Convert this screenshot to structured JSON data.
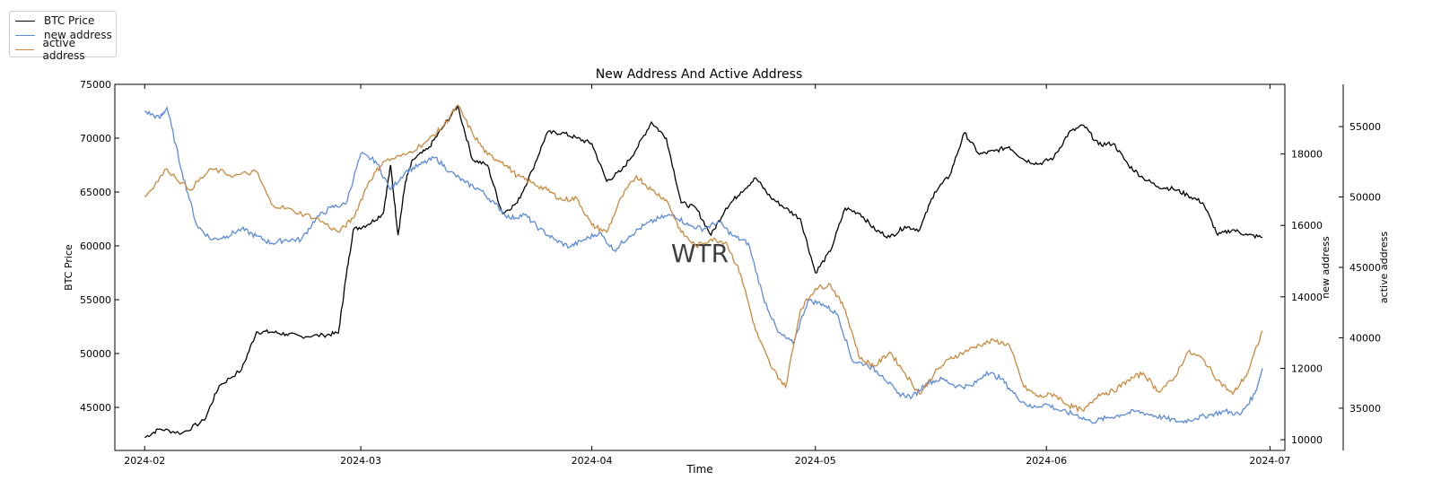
{
  "chart_data": {
    "type": "line",
    "title": "New Address And Active Address",
    "xlabel": "Time",
    "x_ticks": [
      "2024-02",
      "2024-03",
      "2024-04",
      "2024-05",
      "2024-06",
      "2024-07"
    ],
    "x_range": [
      "2024-01-28",
      "2024-07-03"
    ],
    "watermark": "WTR",
    "legend_position": "top-left",
    "axes": [
      {
        "id": "btc",
        "label": "BTC Price",
        "side": "left",
        "range": [
          41000,
          75000
        ],
        "ticks": [
          45000,
          50000,
          55000,
          60000,
          65000,
          70000,
          75000
        ]
      },
      {
        "id": "new",
        "label": "new address",
        "side": "right",
        "range": [
          9700,
          19950
        ],
        "ticks": [
          10000,
          12000,
          14000,
          16000,
          18000
        ]
      },
      {
        "id": "active",
        "label": "active address",
        "side": "right-outer",
        "range": [
          32000,
          58000
        ],
        "ticks": [
          35000,
          40000,
          45000,
          50000,
          55000
        ]
      }
    ],
    "series": [
      {
        "name": "BTC Price",
        "axis": "btc",
        "color": "#000000",
        "points": [
          [
            "2024-02-01",
            42200
          ],
          [
            "2024-02-03",
            43000
          ],
          [
            "2024-02-06",
            42600
          ],
          [
            "2024-02-09",
            43800
          ],
          [
            "2024-02-11",
            47000
          ],
          [
            "2024-02-14",
            48500
          ],
          [
            "2024-02-16",
            52000
          ],
          [
            "2024-02-18",
            52000
          ],
          [
            "2024-02-20",
            51800
          ],
          [
            "2024-02-22",
            51600
          ],
          [
            "2024-02-25",
            51700
          ],
          [
            "2024-02-27",
            51900
          ],
          [
            "2024-02-28",
            57000
          ],
          [
            "2024-02-29",
            61500
          ],
          [
            "2024-03-02",
            62000
          ],
          [
            "2024-03-04",
            63000
          ],
          [
            "2024-03-05",
            67500
          ],
          [
            "2024-03-06",
            61000
          ],
          [
            "2024-03-07",
            66000
          ],
          [
            "2024-03-08",
            68000
          ],
          [
            "2024-03-10",
            69000
          ],
          [
            "2024-03-12",
            71000
          ],
          [
            "2024-03-14",
            73000
          ],
          [
            "2024-03-16",
            68000
          ],
          [
            "2024-03-18",
            67500
          ],
          [
            "2024-03-20",
            63000
          ],
          [
            "2024-03-22",
            64000
          ],
          [
            "2024-03-24",
            67000
          ],
          [
            "2024-03-26",
            70500
          ],
          [
            "2024-03-28",
            70500
          ],
          [
            "2024-03-30",
            70000
          ],
          [
            "2024-04-01",
            69500
          ],
          [
            "2024-04-03",
            66000
          ],
          [
            "2024-04-05",
            67000
          ],
          [
            "2024-04-07",
            69000
          ],
          [
            "2024-04-09",
            71500
          ],
          [
            "2024-04-11",
            70000
          ],
          [
            "2024-04-13",
            64000
          ],
          [
            "2024-04-15",
            63500
          ],
          [
            "2024-04-17",
            61000
          ],
          [
            "2024-04-19",
            63500
          ],
          [
            "2024-04-21",
            65000
          ],
          [
            "2024-04-23",
            66300
          ],
          [
            "2024-04-25",
            64500
          ],
          [
            "2024-04-27",
            63500
          ],
          [
            "2024-04-29",
            62500
          ],
          [
            "2024-05-01",
            57500
          ],
          [
            "2024-05-03",
            59500
          ],
          [
            "2024-05-05",
            63500
          ],
          [
            "2024-05-07",
            63000
          ],
          [
            "2024-05-09",
            61500
          ],
          [
            "2024-05-11",
            60800
          ],
          [
            "2024-05-13",
            61800
          ],
          [
            "2024-05-15",
            61500
          ],
          [
            "2024-05-17",
            65000
          ],
          [
            "2024-05-19",
            66500
          ],
          [
            "2024-05-21",
            70500
          ],
          [
            "2024-05-23",
            68500
          ],
          [
            "2024-05-25",
            68800
          ],
          [
            "2024-05-27",
            69200
          ],
          [
            "2024-05-29",
            68000
          ],
          [
            "2024-05-31",
            67600
          ],
          [
            "2024-06-02",
            68200
          ],
          [
            "2024-06-04",
            70500
          ],
          [
            "2024-06-06",
            71200
          ],
          [
            "2024-06-08",
            69400
          ],
          [
            "2024-06-10",
            69500
          ],
          [
            "2024-06-12",
            67500
          ],
          [
            "2024-06-14",
            66300
          ],
          [
            "2024-06-16",
            65500
          ],
          [
            "2024-06-18",
            65300
          ],
          [
            "2024-06-20",
            64700
          ],
          [
            "2024-06-22",
            64000
          ],
          [
            "2024-06-24",
            61000
          ],
          [
            "2024-06-26",
            61500
          ],
          [
            "2024-06-28",
            61000
          ],
          [
            "2024-06-30",
            60800
          ]
        ]
      },
      {
        "name": "new address",
        "axis": "new",
        "color": "#5b8bd9",
        "points": [
          [
            "2024-02-01",
            19200
          ],
          [
            "2024-02-03",
            19000
          ],
          [
            "2024-02-04",
            19300
          ],
          [
            "2024-02-06",
            17500
          ],
          [
            "2024-02-08",
            16000
          ],
          [
            "2024-02-10",
            15600
          ],
          [
            "2024-02-12",
            15700
          ],
          [
            "2024-02-14",
            15900
          ],
          [
            "2024-02-16",
            15700
          ],
          [
            "2024-02-18",
            15500
          ],
          [
            "2024-02-20",
            15600
          ],
          [
            "2024-02-22",
            15600
          ],
          [
            "2024-02-24",
            16200
          ],
          [
            "2024-02-26",
            16500
          ],
          [
            "2024-02-28",
            16600
          ],
          [
            "2024-03-01",
            18000
          ],
          [
            "2024-03-03",
            17800
          ],
          [
            "2024-03-05",
            17000
          ],
          [
            "2024-03-07",
            17500
          ],
          [
            "2024-03-09",
            17700
          ],
          [
            "2024-03-11",
            17900
          ],
          [
            "2024-03-13",
            17500
          ],
          [
            "2024-03-15",
            17200
          ],
          [
            "2024-03-17",
            17000
          ],
          [
            "2024-03-19",
            16600
          ],
          [
            "2024-03-21",
            16200
          ],
          [
            "2024-03-23",
            16300
          ],
          [
            "2024-03-25",
            15900
          ],
          [
            "2024-03-27",
            15600
          ],
          [
            "2024-03-29",
            15400
          ],
          [
            "2024-03-31",
            15600
          ],
          [
            "2024-04-02",
            15800
          ],
          [
            "2024-04-04",
            15300
          ],
          [
            "2024-04-06",
            15700
          ],
          [
            "2024-04-08",
            16000
          ],
          [
            "2024-04-10",
            16200
          ],
          [
            "2024-04-12",
            16300
          ],
          [
            "2024-04-14",
            16000
          ],
          [
            "2024-04-16",
            15900
          ],
          [
            "2024-04-18",
            16100
          ],
          [
            "2024-04-20",
            15700
          ],
          [
            "2024-04-22",
            15500
          ],
          [
            "2024-04-24",
            14000
          ],
          [
            "2024-04-26",
            13000
          ],
          [
            "2024-04-28",
            12700
          ],
          [
            "2024-04-30",
            13900
          ],
          [
            "2024-05-02",
            13800
          ],
          [
            "2024-05-04",
            13500
          ],
          [
            "2024-05-06",
            12200
          ],
          [
            "2024-05-08",
            12100
          ],
          [
            "2024-05-10",
            11800
          ],
          [
            "2024-05-12",
            11300
          ],
          [
            "2024-05-14",
            11200
          ],
          [
            "2024-05-16",
            11600
          ],
          [
            "2024-05-18",
            11700
          ],
          [
            "2024-05-20",
            11500
          ],
          [
            "2024-05-22",
            11500
          ],
          [
            "2024-05-24",
            11900
          ],
          [
            "2024-05-26",
            11700
          ],
          [
            "2024-05-28",
            11200
          ],
          [
            "2024-05-30",
            10900
          ],
          [
            "2024-06-01",
            11000
          ],
          [
            "2024-06-03",
            10800
          ],
          [
            "2024-06-05",
            10700
          ],
          [
            "2024-06-07",
            10500
          ],
          [
            "2024-06-09",
            10600
          ],
          [
            "2024-06-11",
            10700
          ],
          [
            "2024-06-13",
            10800
          ],
          [
            "2024-06-15",
            10700
          ],
          [
            "2024-06-17",
            10600
          ],
          [
            "2024-06-19",
            10500
          ],
          [
            "2024-06-21",
            10600
          ],
          [
            "2024-06-23",
            10700
          ],
          [
            "2024-06-25",
            10800
          ],
          [
            "2024-06-27",
            10700
          ],
          [
            "2024-06-29",
            11300
          ],
          [
            "2024-06-30",
            12000
          ]
        ]
      },
      {
        "name": "active address",
        "axis": "active",
        "color": "#c9893e",
        "points": [
          [
            "2024-02-01",
            50000
          ],
          [
            "2024-02-04",
            52000
          ],
          [
            "2024-02-07",
            50500
          ],
          [
            "2024-02-10",
            52000
          ],
          [
            "2024-02-13",
            51500
          ],
          [
            "2024-02-16",
            51800
          ],
          [
            "2024-02-18",
            49500
          ],
          [
            "2024-02-21",
            49000
          ],
          [
            "2024-02-24",
            48500
          ],
          [
            "2024-02-27",
            47500
          ],
          [
            "2024-02-29",
            48500
          ],
          [
            "2024-03-02",
            51000
          ],
          [
            "2024-03-04",
            52500
          ],
          [
            "2024-03-07",
            53000
          ],
          [
            "2024-03-10",
            54000
          ],
          [
            "2024-03-12",
            55000
          ],
          [
            "2024-03-14",
            56500
          ],
          [
            "2024-03-16",
            54500
          ],
          [
            "2024-03-18",
            53000
          ],
          [
            "2024-03-20",
            52500
          ],
          [
            "2024-03-22",
            51500
          ],
          [
            "2024-03-24",
            51000
          ],
          [
            "2024-03-26",
            50500
          ],
          [
            "2024-03-28",
            49800
          ],
          [
            "2024-03-30",
            49900
          ],
          [
            "2024-04-01",
            48000
          ],
          [
            "2024-04-03",
            47500
          ],
          [
            "2024-04-05",
            50000
          ],
          [
            "2024-04-07",
            51500
          ],
          [
            "2024-04-09",
            50500
          ],
          [
            "2024-04-11",
            49800
          ],
          [
            "2024-04-13",
            47500
          ],
          [
            "2024-04-15",
            46500
          ],
          [
            "2024-04-17",
            47000
          ],
          [
            "2024-04-19",
            46800
          ],
          [
            "2024-04-21",
            44500
          ],
          [
            "2024-04-23",
            40500
          ],
          [
            "2024-04-25",
            38000
          ],
          [
            "2024-04-27",
            36500
          ],
          [
            "2024-04-29",
            42000
          ],
          [
            "2024-05-01",
            43500
          ],
          [
            "2024-05-03",
            43800
          ],
          [
            "2024-05-05",
            42000
          ],
          [
            "2024-05-07",
            38500
          ],
          [
            "2024-05-09",
            38000
          ],
          [
            "2024-05-11",
            39000
          ],
          [
            "2024-05-13",
            37500
          ],
          [
            "2024-05-15",
            36000
          ],
          [
            "2024-05-17",
            37500
          ],
          [
            "2024-05-19",
            38500
          ],
          [
            "2024-05-21",
            39000
          ],
          [
            "2024-05-23",
            39500
          ],
          [
            "2024-05-25",
            39800
          ],
          [
            "2024-05-27",
            39500
          ],
          [
            "2024-05-29",
            36500
          ],
          [
            "2024-05-31",
            35800
          ],
          [
            "2024-06-02",
            36000
          ],
          [
            "2024-06-04",
            35200
          ],
          [
            "2024-06-06",
            34800
          ],
          [
            "2024-06-08",
            36000
          ],
          [
            "2024-06-10",
            36200
          ],
          [
            "2024-06-12",
            37000
          ],
          [
            "2024-06-14",
            37500
          ],
          [
            "2024-06-16",
            36200
          ],
          [
            "2024-06-18",
            37000
          ],
          [
            "2024-06-20",
            39000
          ],
          [
            "2024-06-22",
            38500
          ],
          [
            "2024-06-24",
            37000
          ],
          [
            "2024-06-26",
            36000
          ],
          [
            "2024-06-28",
            37500
          ],
          [
            "2024-06-30",
            40500
          ]
        ]
      }
    ]
  }
}
